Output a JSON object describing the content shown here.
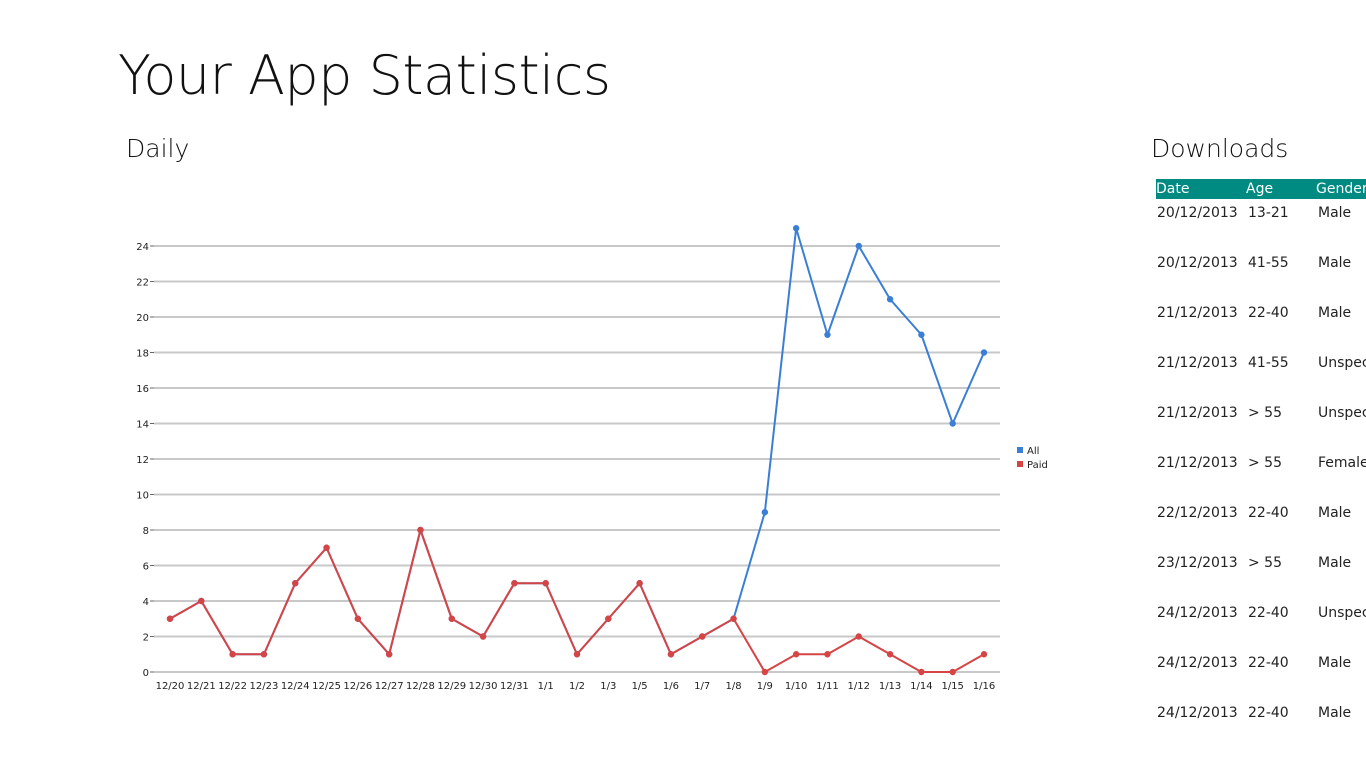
{
  "page": {
    "title": "Your App Statistics"
  },
  "chart_section": {
    "title": "Daily"
  },
  "downloads_section": {
    "title": "Downloads",
    "columns": [
      "Date",
      "Age",
      "Gender"
    ],
    "rows": [
      [
        "20/12/2013",
        "13-21",
        "Male"
      ],
      [
        "20/12/2013",
        "41-55",
        "Male"
      ],
      [
        "21/12/2013",
        "22-40",
        "Male"
      ],
      [
        "21/12/2013",
        "41-55",
        "Unspec"
      ],
      [
        "21/12/2013",
        "> 55",
        "Unspec"
      ],
      [
        "21/12/2013",
        "> 55",
        "Female"
      ],
      [
        "22/12/2013",
        "22-40",
        "Male"
      ],
      [
        "23/12/2013",
        "> 55",
        "Male"
      ],
      [
        "24/12/2013",
        "22-40",
        "Unspec"
      ],
      [
        "24/12/2013",
        "22-40",
        "Male"
      ],
      [
        "24/12/2013",
        "22-40",
        "Male"
      ]
    ]
  },
  "colors": {
    "all": "#3a7fd5",
    "paid": "#d64545",
    "header_bg": "#008b82",
    "grid": "#c8c8c8"
  },
  "chart_data": {
    "type": "line",
    "title": "",
    "xlabel": "",
    "ylabel": "",
    "ylim": [
      0,
      24
    ],
    "yticks": [
      0,
      2,
      4,
      6,
      8,
      10,
      12,
      14,
      16,
      18,
      20,
      22,
      24
    ],
    "grid": true,
    "legend_position": "right",
    "categories": [
      "12/20",
      "12/21",
      "12/22",
      "12/23",
      "12/24",
      "12/25",
      "12/26",
      "12/27",
      "12/28",
      "12/29",
      "12/30",
      "12/31",
      "1/1",
      "1/2",
      "1/3",
      "1/5",
      "1/6",
      "1/7",
      "1/8",
      "1/9",
      "1/10",
      "1/11",
      "1/12",
      "1/13",
      "1/14",
      "1/15",
      "1/16"
    ],
    "series": [
      {
        "name": "All",
        "color": "#3a7fd5",
        "values": [
          3,
          4,
          1,
          1,
          5,
          7,
          3,
          1,
          8,
          3,
          2,
          5,
          5,
          1,
          3,
          5,
          1,
          2,
          3,
          9,
          25,
          19,
          24,
          21,
          19,
          14,
          18
        ]
      },
      {
        "name": "Paid",
        "color": "#d64545",
        "values": [
          3,
          4,
          1,
          1,
          5,
          7,
          3,
          1,
          8,
          3,
          2,
          5,
          5,
          1,
          3,
          5,
          1,
          2,
          3,
          0,
          1,
          1,
          2,
          1,
          0,
          0,
          1
        ]
      }
    ]
  }
}
